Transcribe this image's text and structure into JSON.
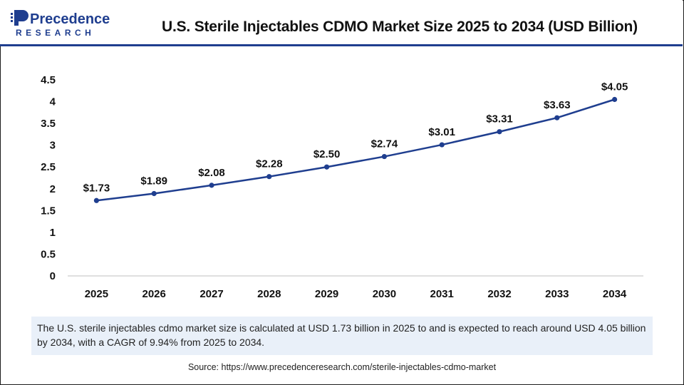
{
  "brand": {
    "logo_top": "Precedence",
    "logo_bottom": "RESEARCH",
    "colors": {
      "navy": "#1f3e8f",
      "black": "#111111",
      "line": "#1f3e8f"
    }
  },
  "header": {
    "title": "U.S. Sterile Injectables CDMO Market Size 2025 to 2034 (USD Billion)"
  },
  "chart_data": {
    "type": "line",
    "title": "U.S. Sterile Injectables CDMO Market Size 2025 to 2034 (USD Billion)",
    "x": [
      "2025",
      "2026",
      "2027",
      "2028",
      "2029",
      "2030",
      "2031",
      "2032",
      "2033",
      "2034"
    ],
    "series": [
      {
        "values": [
          1.73,
          1.89,
          2.08,
          2.28,
          2.5,
          2.74,
          3.01,
          3.31,
          3.63,
          4.05
        ],
        "labels": [
          "$1.73",
          "$1.89",
          "$2.08",
          "$2.28",
          "$2.50",
          "$2.74",
          "$3.01",
          "$3.31",
          "$3.63",
          "$4.05"
        ]
      }
    ],
    "y_ticks": [
      "0",
      "0.5",
      "1",
      "1.5",
      "2",
      "2.5",
      "3",
      "3.5",
      "4",
      "4.5"
    ],
    "ylim": [
      0,
      4.5
    ],
    "grid": false,
    "legend": "none",
    "xlabel": "",
    "ylabel": ""
  },
  "note": {
    "text": "The U.S. sterile injectables cdmo market  size is calculated at USD 1.73 billion in 2025 to and is expected to reach around USD 4.05 billion by 2034, with a CAGR of 9.94% from 2025 to 2034."
  },
  "source": {
    "text": "Source: https://www.precedenceresearch.com/sterile-injectables-cdmo-market"
  }
}
